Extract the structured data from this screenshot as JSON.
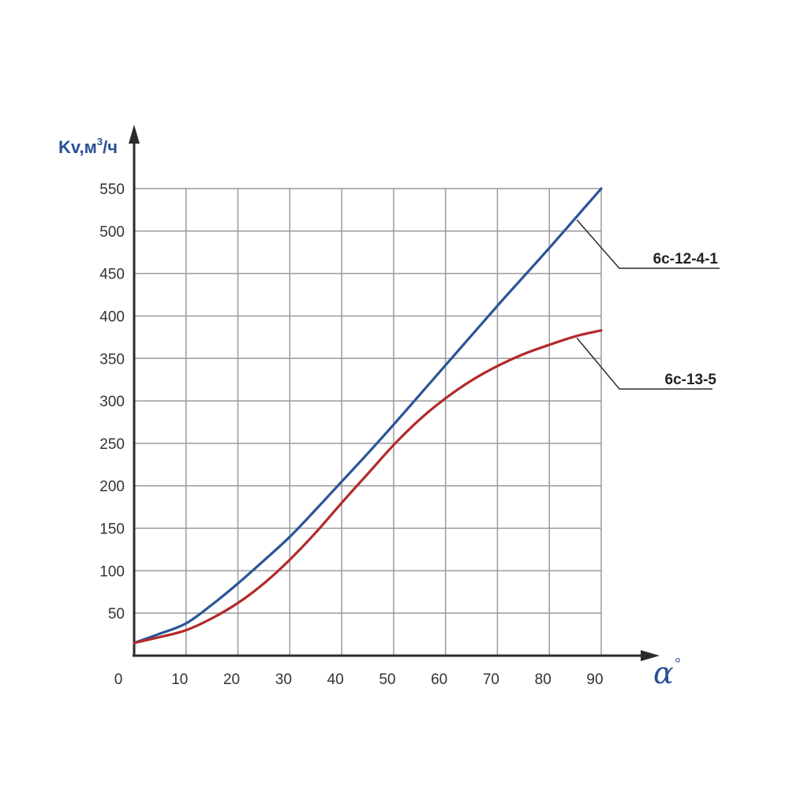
{
  "chart_data": {
    "type": "line",
    "title": "",
    "ylabel": "Kv,м",
    "ylabel_sup": "3",
    "ylabel_tail": "/ч",
    "xlabel": "α",
    "xlabel_unit": "°",
    "x_origin_label": "0",
    "xlim": [
      0,
      90
    ],
    "ylim": [
      0,
      550
    ],
    "x_ticks": [
      10,
      20,
      30,
      40,
      50,
      60,
      70,
      80,
      90
    ],
    "y_ticks": [
      50,
      100,
      150,
      200,
      250,
      300,
      350,
      400,
      450,
      500,
      550
    ],
    "grid": true,
    "legend": "callouts",
    "series": [
      {
        "name": "6с-12-4-1",
        "color": "#2a5596",
        "x": [
          0,
          5,
          10,
          15,
          20,
          25,
          30,
          35,
          40,
          45,
          50,
          55,
          60,
          65,
          70,
          75,
          80,
          85,
          90
        ],
        "y": [
          15,
          26,
          38,
          60,
          85,
          112,
          140,
          172,
          205,
          238,
          272,
          307,
          342,
          377,
          412,
          446,
          480,
          515,
          550
        ]
      },
      {
        "name": "6с-13-5",
        "color": "#b32a2a",
        "x": [
          0,
          5,
          10,
          15,
          20,
          25,
          30,
          35,
          40,
          45,
          50,
          55,
          60,
          65,
          70,
          75,
          80,
          85,
          90
        ],
        "y": [
          15,
          22,
          30,
          44,
          62,
          85,
          113,
          145,
          180,
          214,
          248,
          278,
          303,
          324,
          341,
          355,
          366,
          376,
          383
        ]
      }
    ]
  }
}
